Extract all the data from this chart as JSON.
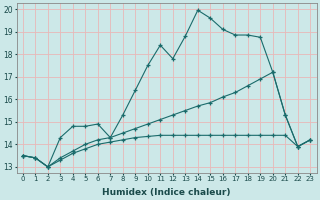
{
  "xlabel": "Humidex (Indice chaleur)",
  "bg_color": "#cce8e8",
  "grid_color": "#e8b8b8",
  "line_color": "#1a6b6b",
  "x_values": [
    0,
    1,
    2,
    3,
    4,
    5,
    6,
    7,
    8,
    9,
    10,
    11,
    12,
    13,
    14,
    15,
    16,
    17,
    18,
    19,
    20,
    21,
    22,
    23
  ],
  "line1": [
    13.5,
    13.4,
    13.0,
    14.3,
    14.8,
    14.8,
    14.9,
    14.3,
    15.3,
    16.4,
    17.5,
    18.4,
    17.8,
    18.8,
    19.95,
    19.6,
    19.1,
    18.85,
    18.85,
    18.75,
    17.2,
    15.3,
    13.9,
    14.2
  ],
  "line2": [
    13.5,
    13.4,
    13.0,
    13.3,
    13.6,
    13.8,
    14.0,
    14.1,
    14.2,
    14.3,
    14.35,
    14.4,
    14.4,
    14.4,
    14.4,
    14.4,
    14.4,
    14.4,
    14.4,
    14.4,
    14.4,
    14.4,
    13.9,
    14.2
  ],
  "line3": [
    13.5,
    13.4,
    13.0,
    13.4,
    13.7,
    14.0,
    14.2,
    14.3,
    14.5,
    14.7,
    14.9,
    15.1,
    15.3,
    15.5,
    15.7,
    15.85,
    16.1,
    16.3,
    16.6,
    16.9,
    17.2,
    15.3,
    13.9,
    14.2
  ],
  "ylim": [
    12.75,
    20.25
  ],
  "xlim": [
    -0.5,
    23.5
  ],
  "yticks": [
    13,
    14,
    15,
    16,
    17,
    18,
    19,
    20
  ],
  "xticks": [
    0,
    1,
    2,
    3,
    4,
    5,
    6,
    7,
    8,
    9,
    10,
    11,
    12,
    13,
    14,
    15,
    16,
    17,
    18,
    19,
    20,
    21,
    22,
    23
  ]
}
